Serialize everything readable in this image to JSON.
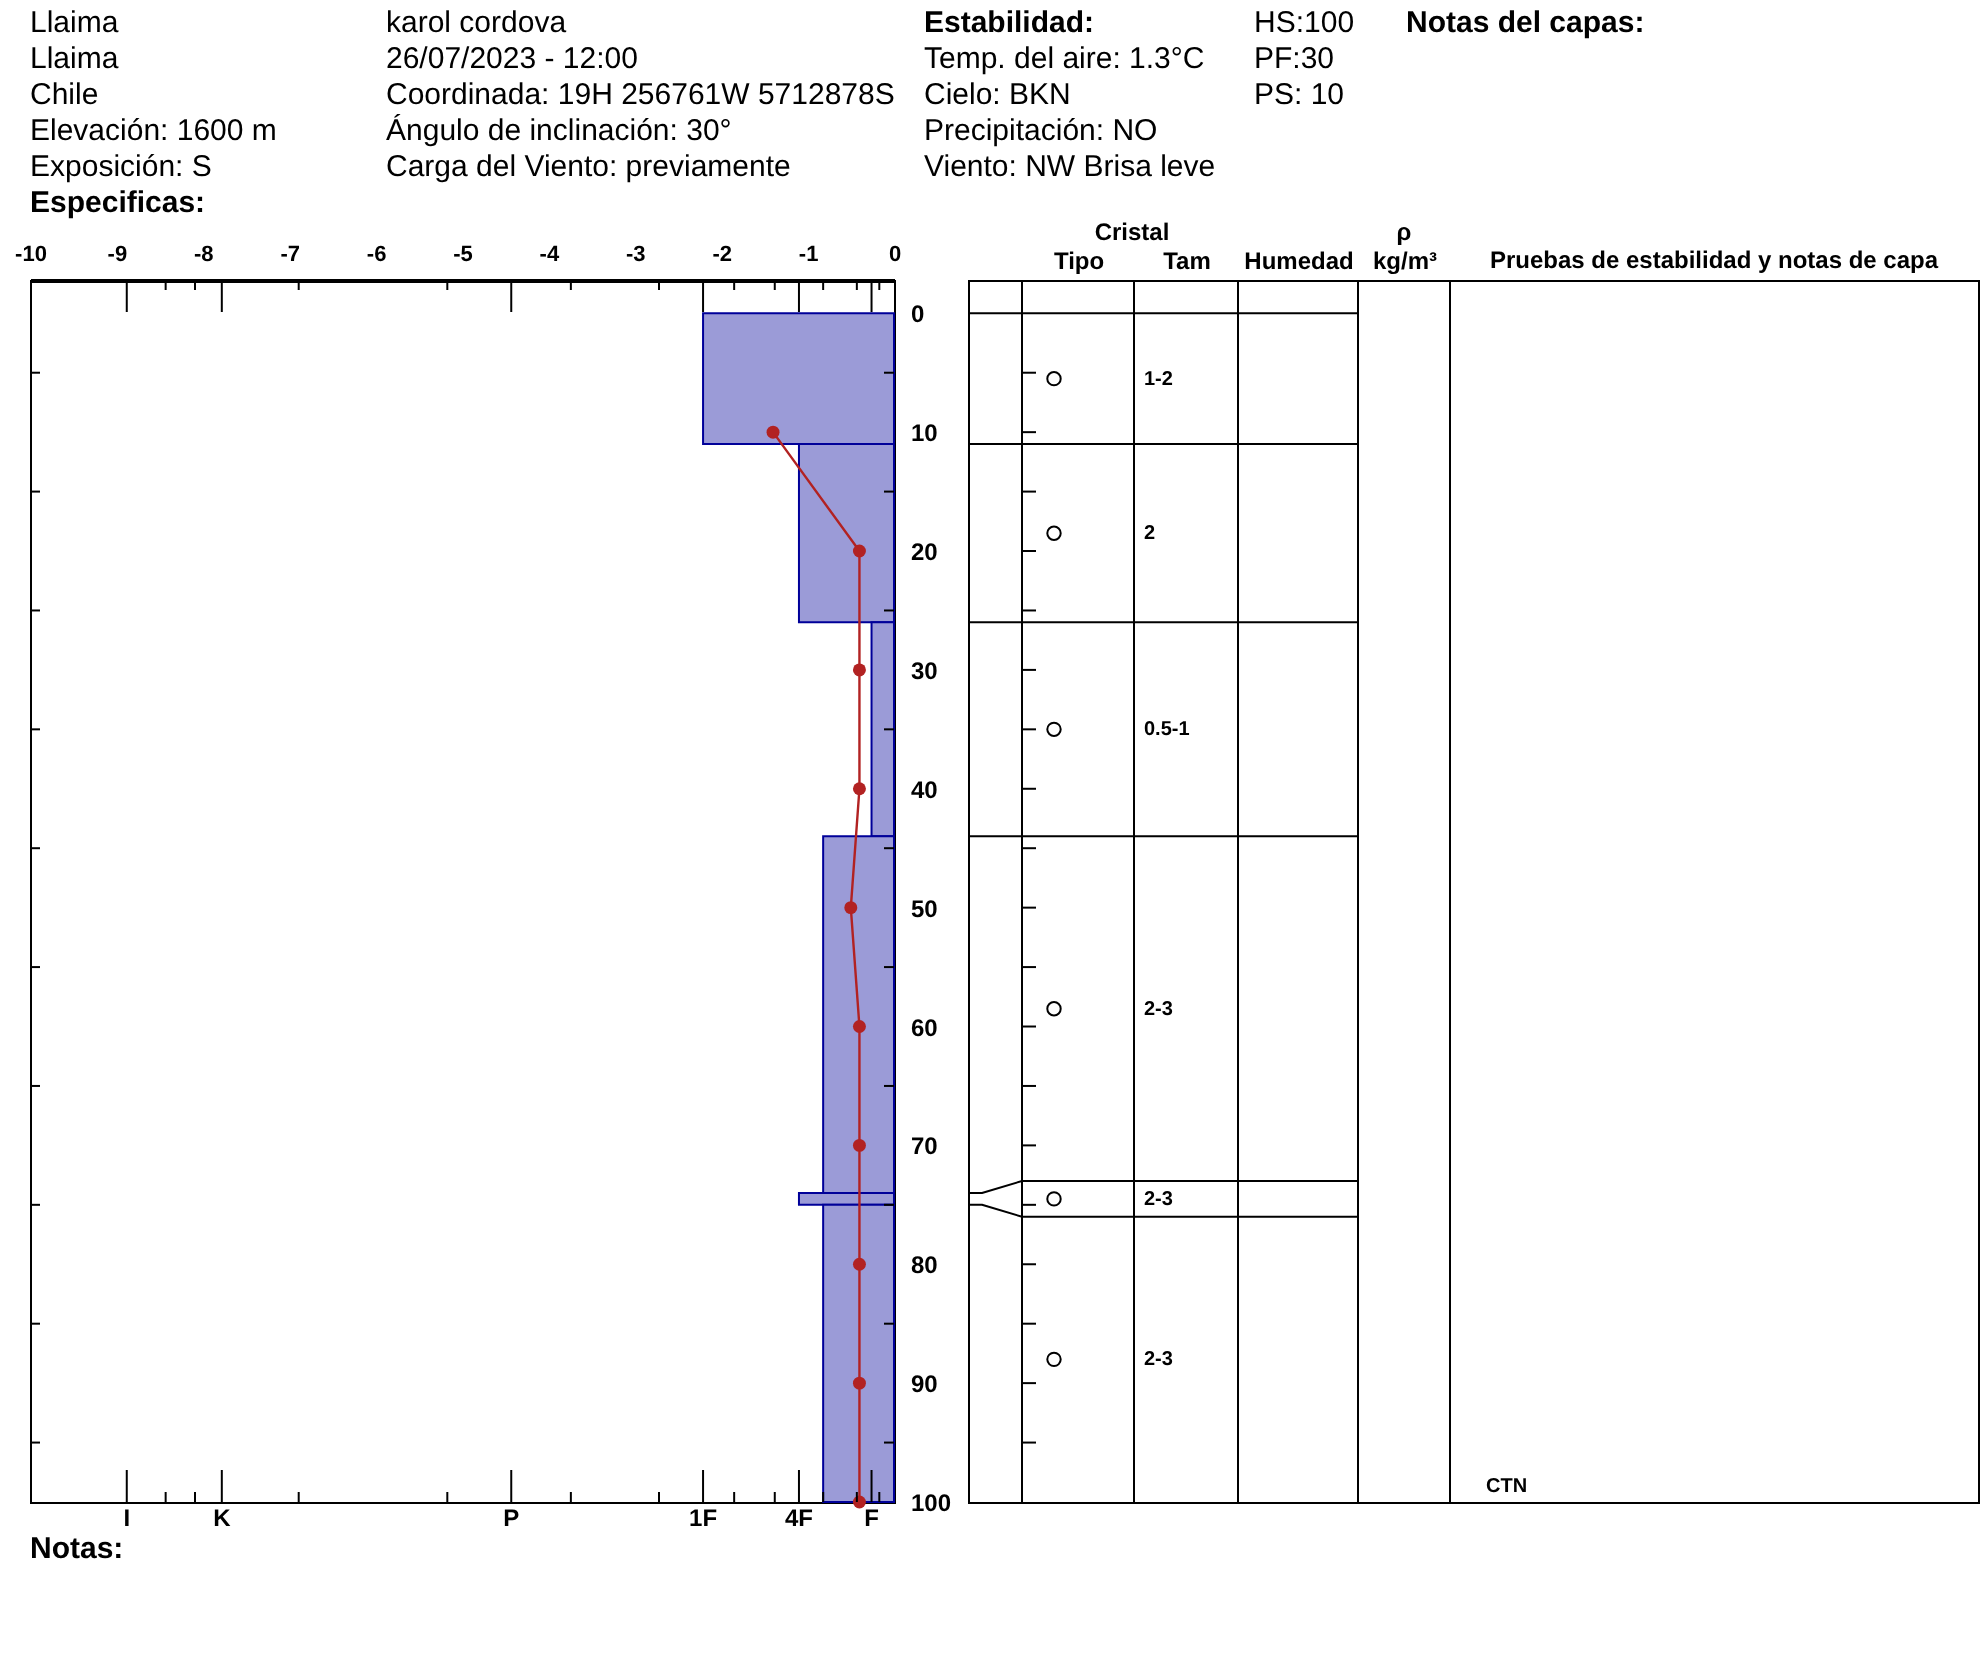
{
  "chart_data": [
    {
      "type": "other",
      "annotations": [
        "Llaima",
        "Llaima",
        "Chile",
        "Elevación: 1600 m",
        "Exposición: S",
        "Especificas:",
        "karol cordova",
        "26/07/2023 - 12:00",
        "Coordinada: 19H 256761W 5712878S",
        "Ángulo de inclinación: 30°",
        "Carga del Viento: previamente",
        "Estabilidad:",
        "Temp. del aire: 1.3°C",
        "Cielo: BKN",
        "Precipitación: NO",
        "Viento:  NW Brisa leve",
        "HS:100",
        "PF:30",
        "PS: 10",
        "Notas del capas:",
        "Notas:"
      ]
    },
    {
      "type": "histogram",
      "orientation": "horizontal",
      "xlim": [
        -10,
        0
      ],
      "xticks": [
        -10,
        -9,
        -8,
        -7,
        -6,
        -5,
        -4,
        -3,
        -2,
        -1,
        0,
        {
          "value": -8.88,
          "label": null
        },
        {
          "value": -7.78,
          "label": null
        },
        {
          "value": -4.43,
          "label": null
        },
        {
          "value": -2.21,
          "label": null
        },
        {
          "value": -1.1,
          "label": null
        },
        {
          "value": -0.26,
          "label": null
        },
        {
          "value": -8.43,
          "label": null
        },
        {
          "value": -8.09,
          "label": null
        },
        {
          "value": -6.89,
          "label": null
        },
        {
          "value": -5.17,
          "label": null
        },
        {
          "value": -3.74,
          "label": null
        },
        {
          "value": -2.72,
          "label": null
        },
        {
          "value": -1.85,
          "label": null
        },
        {
          "value": -1.38,
          "label": null
        },
        {
          "value": -0.82,
          "label": null
        },
        {
          "value": -0.43,
          "label": null
        },
        {
          "value": -0.17,
          "label": null
        }
      ],
      "ylim": [
        100,
        -2.8
      ],
      "yticks": [
        0,
        {
          "value": 5,
          "label": null
        },
        10,
        {
          "value": 15,
          "label": null
        },
        20,
        {
          "value": 25,
          "label": null
        },
        30,
        {
          "value": 35,
          "label": null
        },
        40,
        {
          "value": 45,
          "label": null
        },
        50,
        {
          "value": 55,
          "label": null
        },
        60,
        {
          "value": 65,
          "label": null
        },
        70,
        {
          "value": 75,
          "label": null
        },
        80,
        {
          "value": 85,
          "label": null
        },
        90,
        {
          "value": 95,
          "label": null
        },
        100
      ],
      "series": [
        {
          "type": "histogram",
          "bins": [
            0,
            11,
            26,
            44,
            74,
            75,
            100
          ],
          "values": [
            -2.21,
            -1.1,
            -0.26,
            -0.82,
            -1.1,
            -0.82
          ],
          "color": "#9b9bd7"
        },
        {
          "type": "line",
          "x": [
            10,
            20,
            30,
            40,
            50,
            60,
            70,
            80,
            90,
            100
          ],
          "values": [
            -1.4,
            -0.4,
            -0.4,
            -0.4,
            -0.5,
            -0.4,
            -0.4,
            -0.4,
            -0.4,
            -0.4
          ],
          "color": "#b22222",
          "marker": "circle"
        }
      ],
      "annotations": [
        "I",
        "K",
        "P",
        "1F",
        "4F",
        "F"
      ]
    },
    {
      "type": "scatter",
      "categories": [
        "Tipo",
        "Tam",
        "Humedad",
        "kg/m³"
      ],
      "ylim": [
        100,
        -2.8
      ],
      "yticks": [
        5,
        10,
        15,
        20,
        25,
        30,
        35,
        40,
        45,
        50,
        55,
        60,
        65,
        70,
        75,
        80,
        85,
        90,
        95
      ],
      "tick_labels": "x",
      "ref_lines": [
        {
          "axis": "y",
          "value": 0
        },
        {
          "axis": "y",
          "value": 11
        },
        {
          "axis": "y",
          "value": 26
        },
        {
          "axis": "y",
          "value": 44
        },
        {
          "axis": "y",
          "value": 73
        },
        {
          "axis": "y",
          "value": 76
        }
      ],
      "series": [
        {
          "type": "scatter",
          "x": [
            "Tipo",
            "Tipo",
            "Tipo",
            "Tipo",
            "Tipo",
            "Tipo"
          ],
          "values": [
            5.5,
            18.5,
            35,
            58.5,
            74.5,
            88
          ],
          "color": "#000000",
          "marker": "circle"
        }
      ],
      "annotations": [
        "Cristal",
        "ρ",
        "Pruebas de estabilidad y notas de capa",
        "1-2",
        "2",
        "0.5-1",
        "2-3",
        "2-3",
        "2-3",
        "CTN"
      ]
    }
  ]
}
